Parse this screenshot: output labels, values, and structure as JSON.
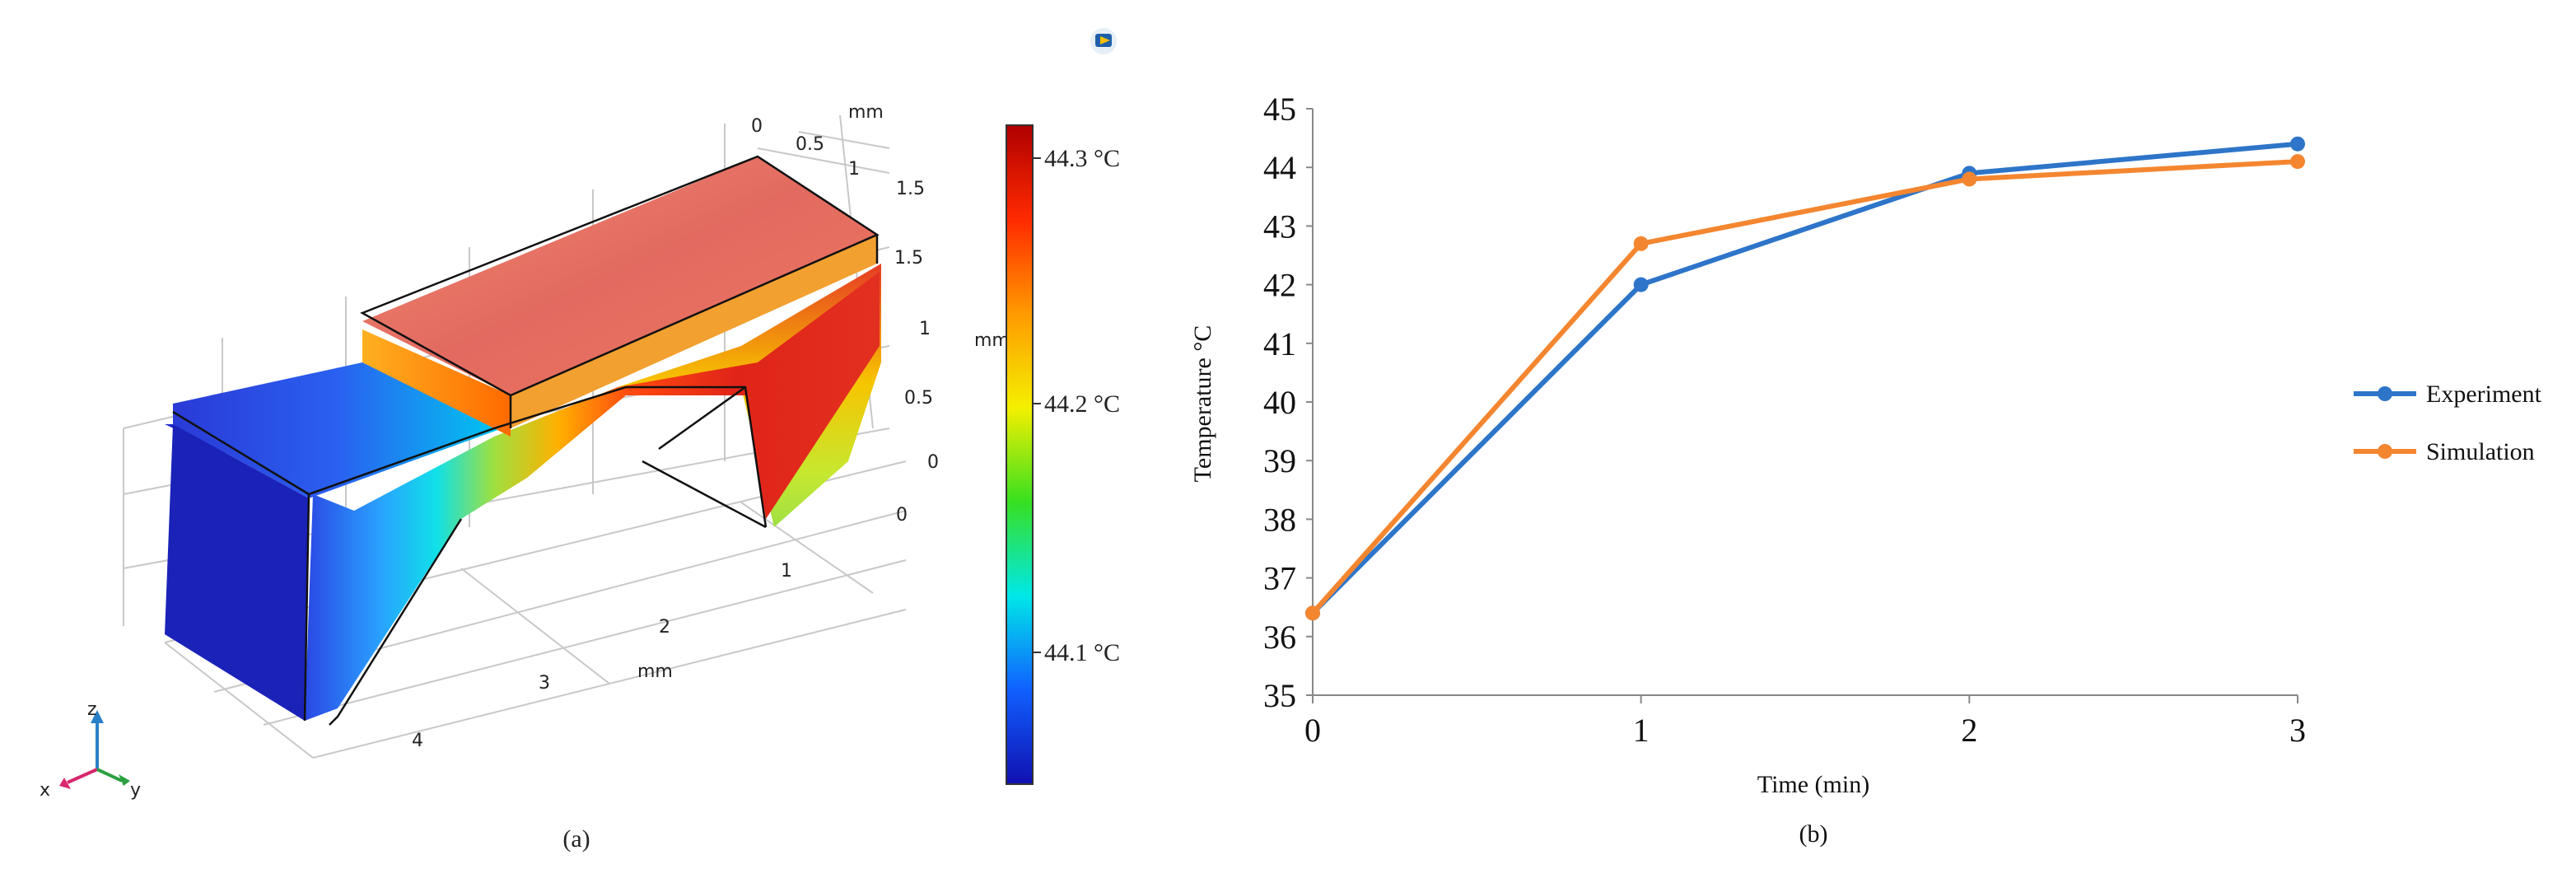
{
  "panel_a": {
    "caption": "(a)",
    "axis_unit": "mm",
    "x_ticks": [
      "1",
      "2",
      "3",
      "4"
    ],
    "y_ticks": [
      "0",
      "0.5",
      "1",
      "1.5"
    ],
    "z_ticks": [
      "0",
      "0.5",
      "1",
      "1.5"
    ],
    "triad": {
      "x": "x",
      "y": "y",
      "z": "z"
    },
    "colorbar": {
      "labels": [
        "44.3 °C",
        "44.2 °C",
        "44.1 °C"
      ],
      "colors": [
        "#b00000",
        "#ff2a00",
        "#ff9a00",
        "#f4f000",
        "#38e020",
        "#00e8e8",
        "#1060ff",
        "#1010b0"
      ]
    },
    "colors": {
      "hot": "#e4302a",
      "top_face": "#e87a6e",
      "cold": "#2a34d8",
      "cold_top": "#3a50e6"
    }
  },
  "chart_data": {
    "type": "line",
    "caption": "(b)",
    "xlabel": "Time (min)",
    "ylabel": "Temperature °C",
    "x": [
      0,
      1,
      2,
      3
    ],
    "xlim": [
      0,
      3
    ],
    "ylim": [
      35,
      45
    ],
    "x_ticks": [
      "0",
      "1",
      "2",
      "3"
    ],
    "y_ticks": [
      "35",
      "36",
      "37",
      "38",
      "39",
      "40",
      "41",
      "42",
      "43",
      "44",
      "45"
    ],
    "grid": false,
    "legend_position": "right",
    "series": [
      {
        "name": "Experiment",
        "color": "#2e75c9",
        "values": [
          36.4,
          42.0,
          43.9,
          44.4
        ]
      },
      {
        "name": "Simulation",
        "color": "#f48630",
        "values": [
          36.4,
          42.7,
          43.8,
          44.1
        ]
      }
    ]
  }
}
